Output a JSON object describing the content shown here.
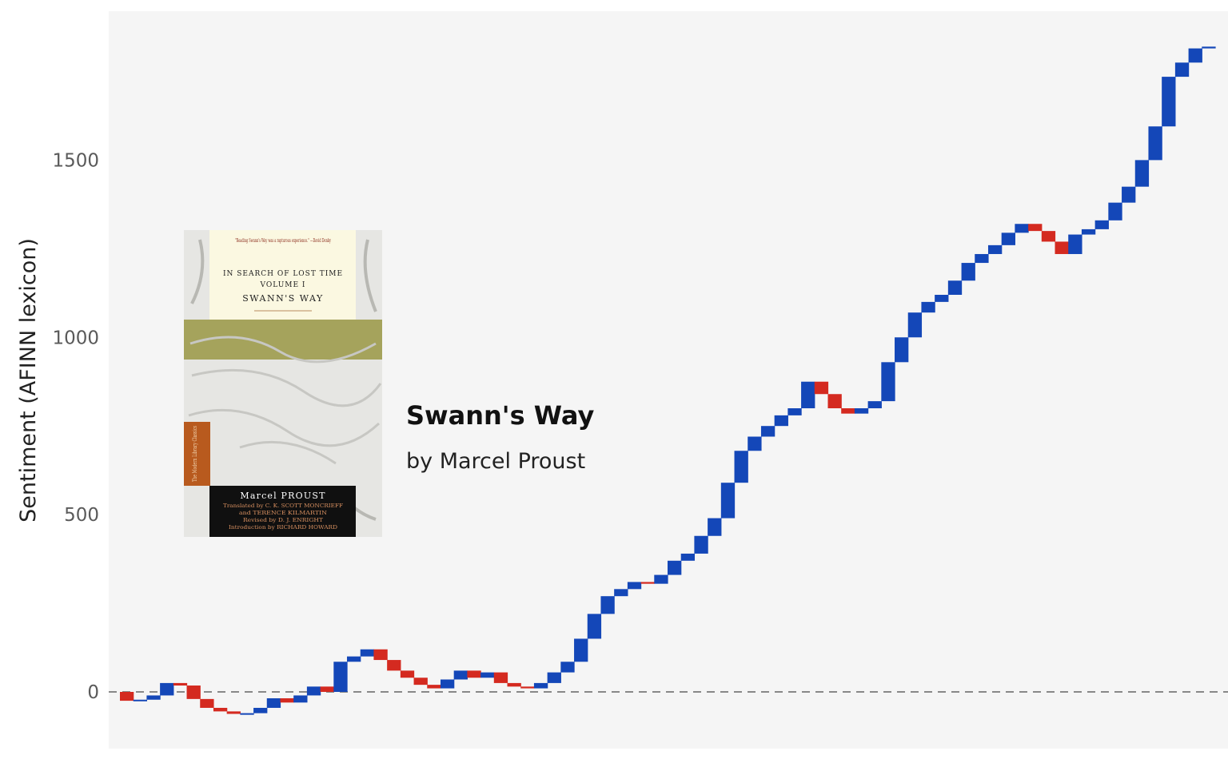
{
  "chart_data": {
    "type": "waterfall",
    "title": "Swann's Way",
    "subtitle": "by Marcel Proust",
    "ylabel": "Sentiment (AFINN lexicon)",
    "yticks": [
      0,
      500,
      1000,
      1500
    ],
    "ylim": [
      -160,
      1920
    ],
    "baseline": 0,
    "colors": {
      "positive": "#1447b8",
      "negative": "#d42a20",
      "background": "#f5f5f5",
      "baseline": "#888888"
    },
    "cumulative": [
      0,
      -25,
      -22,
      -10,
      25,
      18,
      -20,
      -45,
      -55,
      -62,
      -60,
      -45,
      -18,
      -30,
      -10,
      15,
      0,
      85,
      100,
      120,
      90,
      60,
      40,
      20,
      10,
      35,
      60,
      40,
      55,
      25,
      15,
      10,
      25,
      55,
      85,
      150,
      220,
      270,
      290,
      310,
      305,
      330,
      370,
      390,
      440,
      490,
      590,
      680,
      720,
      750,
      780,
      800,
      875,
      840,
      800,
      785,
      800,
      820,
      930,
      1000,
      1070,
      1100,
      1120,
      1160,
      1210,
      1235,
      1260,
      1295,
      1320,
      1300,
      1270,
      1235,
      1290,
      1305,
      1330,
      1380,
      1425,
      1500,
      1595,
      1735,
      1775,
      1815,
      1820
    ]
  },
  "cover": {
    "quote": "\"Reading Swann's Way was a rapturous experience.\" —David Denby",
    "series_line1": "IN SEARCH OF LOST TIME",
    "series_line2": "VOLUME I",
    "cover_title": "SWANN'S WAY",
    "author": "Marcel PROUST",
    "credits": [
      "Translated by C. K. SCOTT MONCRIEFF",
      "and TERENCE KILMARTIN",
      "Revised by D. J. ENRIGHT",
      "Introduction by RICHARD HOWARD"
    ],
    "imprint": "The Modern Library Classics",
    "colors": {
      "paper": "#fbf8e1",
      "sheet": "#e6e6e3",
      "band": "#101010",
      "spine": "#b85a1e",
      "wall": "#a5a35c"
    }
  }
}
